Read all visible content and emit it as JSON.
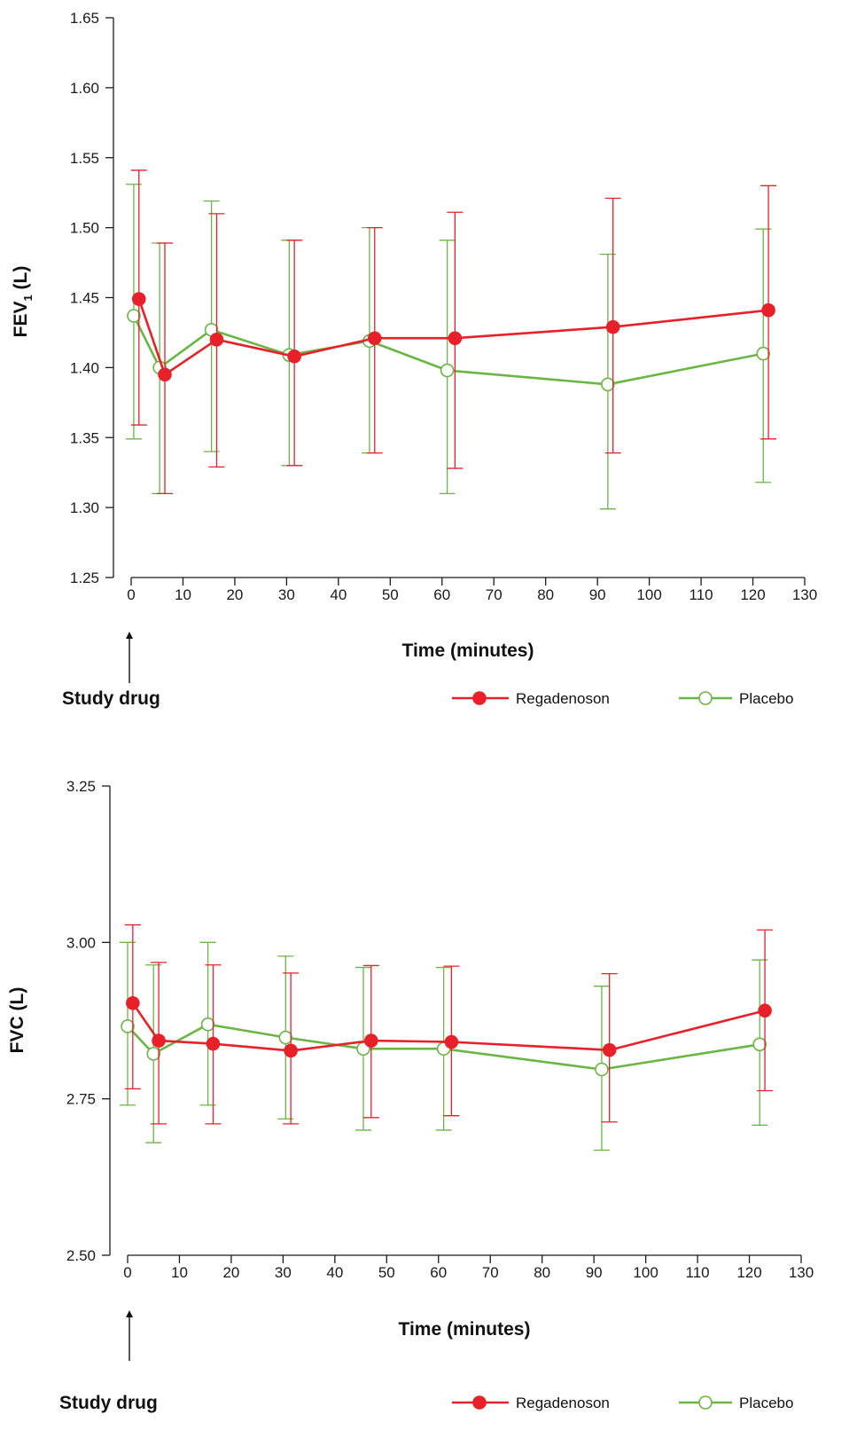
{
  "colors": {
    "regadenoson": "#e8202a",
    "placebo": "#6ab645",
    "axis": "#1a1a1a"
  },
  "legend": {
    "regadenoson": "Regadenoson",
    "placebo": "Placebo"
  },
  "annotation": {
    "study_drug": "Study drug"
  },
  "chart_data": [
    {
      "type": "line",
      "ylabel_main": "FEV",
      "ylabel_sub": "1",
      "ylabel_tail": " (L)",
      "xlabel": "Time (minutes)",
      "xlim": [
        0,
        130
      ],
      "ylim": [
        1.25,
        1.65
      ],
      "xticks": [
        0,
        10,
        20,
        30,
        40,
        50,
        60,
        70,
        80,
        90,
        100,
        110,
        120,
        130
      ],
      "yticks": [
        "1.25",
        "1.30",
        "1.35",
        "1.40",
        "1.45",
        "1.50",
        "1.55",
        "1.60",
        "1.65"
      ],
      "series": [
        {
          "name": "Regadenoson",
          "color": "#e8202a",
          "filled": true,
          "x": [
            1.5,
            6.5,
            16.5,
            31.5,
            47,
            62.5,
            93,
            123
          ],
          "y": [
            1.449,
            1.395,
            1.42,
            1.408,
            1.421,
            1.421,
            1.429,
            1.441
          ],
          "err_low": [
            1.359,
            1.31,
            1.329,
            1.33,
            1.339,
            1.328,
            1.339,
            1.349
          ],
          "err_high": [
            1.541,
            1.489,
            1.51,
            1.491,
            1.5,
            1.511,
            1.521,
            1.53
          ]
        },
        {
          "name": "Placebo",
          "color": "#6ab645",
          "filled": false,
          "x": [
            0.5,
            5.5,
            15.5,
            30.5,
            46,
            61,
            92,
            122
          ],
          "y": [
            1.437,
            1.4,
            1.427,
            1.409,
            1.419,
            1.398,
            1.388,
            1.41
          ],
          "err_low": [
            1.349,
            1.31,
            1.34,
            1.33,
            1.339,
            1.31,
            1.299,
            1.318
          ],
          "err_high": [
            1.531,
            1.489,
            1.519,
            1.491,
            1.5,
            1.491,
            1.481,
            1.499
          ]
        }
      ]
    },
    {
      "type": "line",
      "ylabel_main": "FVC (L)",
      "ylabel_sub": "",
      "ylabel_tail": "",
      "xlabel": "Time (minutes)",
      "xlim": [
        0,
        130
      ],
      "ylim": [
        2.5,
        3.25
      ],
      "xticks": [
        0,
        10,
        20,
        30,
        40,
        50,
        60,
        70,
        80,
        90,
        100,
        110,
        120,
        130
      ],
      "yticks": [
        "2.50",
        "2.75",
        "3.00",
        "3.25"
      ],
      "series": [
        {
          "name": "Regadenoson",
          "color": "#e8202a",
          "filled": true,
          "x": [
            1,
            6,
            16.5,
            31.5,
            47,
            62.5,
            93,
            123
          ],
          "y": [
            2.903,
            2.843,
            2.838,
            2.827,
            2.843,
            2.841,
            2.828,
            2.891
          ],
          "err_low": [
            2.766,
            2.71,
            2.71,
            2.71,
            2.72,
            2.723,
            2.713,
            2.763
          ],
          "err_high": [
            3.028,
            2.968,
            2.964,
            2.951,
            2.963,
            2.962,
            2.95,
            3.02
          ]
        },
        {
          "name": "Placebo",
          "color": "#6ab645",
          "filled": false,
          "x": [
            0,
            5,
            15.5,
            30.5,
            45.5,
            61,
            91.5,
            122
          ],
          "y": [
            2.866,
            2.822,
            2.869,
            2.848,
            2.83,
            2.83,
            2.797,
            2.837
          ],
          "err_low": [
            2.74,
            2.68,
            2.74,
            2.718,
            2.7,
            2.7,
            2.668,
            2.708
          ],
          "err_high": [
            3.0,
            2.964,
            3.0,
            2.978,
            2.96,
            2.96,
            2.93,
            2.972
          ]
        }
      ]
    }
  ]
}
